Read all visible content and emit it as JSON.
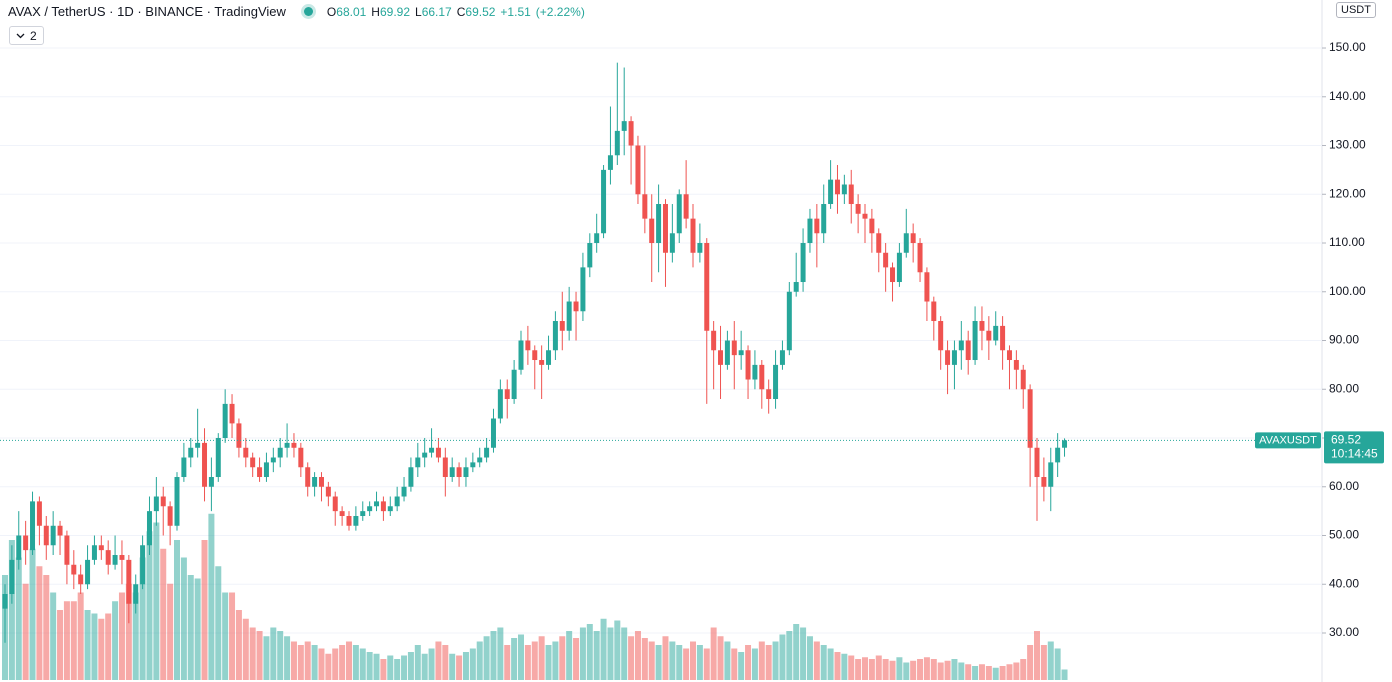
{
  "chart_data": {
    "type": "candlestick",
    "title": "AVAX / TetherUS · 1D · BINANCE · TradingView",
    "ohlc_labels": [
      "O",
      "H",
      "L",
      "C"
    ],
    "change": "+1.51",
    "change_pct": "(+2.22%)",
    "indicator_count": "2",
    "currency": "USDT",
    "symbol": "AVAXUSDT",
    "countdown": "10:14:45",
    "up_color": "#26a69a",
    "down_color": "#ef5350",
    "grid": true,
    "ylim": [
      19.95,
      159.85
    ],
    "volume_lim": [
      0,
      100
    ],
    "yticks": [
      {
        "value": 30,
        "label": "30.00"
      },
      {
        "value": 40,
        "label": "40.00"
      },
      {
        "value": 50,
        "label": "50.00"
      },
      {
        "value": 60,
        "label": "60.00"
      },
      {
        "value": 70,
        "label": "70.00"
      },
      {
        "value": 80,
        "label": "80.00"
      },
      {
        "value": 90,
        "label": "90.00"
      },
      {
        "value": 100,
        "label": "100.00"
      },
      {
        "value": 110,
        "label": "110.00"
      },
      {
        "value": 120,
        "label": "120.00"
      },
      {
        "value": 130,
        "label": "130.00"
      },
      {
        "value": 140,
        "label": "140.00"
      },
      {
        "value": 150,
        "label": "150.00"
      }
    ],
    "candles": [
      [
        35,
        40,
        28,
        38,
        60
      ],
      [
        38,
        48,
        36,
        45,
        80
      ],
      [
        45,
        55,
        43,
        50,
        70
      ],
      [
        50,
        53,
        44,
        47,
        55
      ],
      [
        47,
        59,
        46,
        57,
        75
      ],
      [
        57,
        58,
        48,
        52,
        65
      ],
      [
        52,
        54,
        45,
        48,
        60
      ],
      [
        48,
        55,
        46,
        52,
        50
      ],
      [
        52,
        53,
        46,
        50,
        40
      ],
      [
        50,
        51,
        40,
        44,
        45
      ],
      [
        44,
        47,
        39,
        42,
        45
      ],
      [
        42,
        44,
        38,
        40,
        50
      ],
      [
        40,
        48,
        39,
        45,
        40
      ],
      [
        45,
        50,
        44,
        48,
        38
      ],
      [
        48,
        50,
        45,
        47,
        35
      ],
      [
        47,
        49,
        42,
        44,
        38
      ],
      [
        44,
        50,
        43,
        46,
        45
      ],
      [
        46,
        49,
        40,
        45,
        50
      ],
      [
        45,
        46,
        32,
        36,
        55
      ],
      [
        36,
        42,
        34,
        40,
        50
      ],
      [
        40,
        50,
        39,
        48,
        70
      ],
      [
        48,
        58,
        46,
        55,
        85
      ],
      [
        55,
        62,
        52,
        58,
        90
      ],
      [
        58,
        60,
        50,
        56,
        75
      ],
      [
        56,
        57,
        48,
        52,
        55
      ],
      [
        52,
        63,
        51,
        62,
        80
      ],
      [
        62,
        69,
        61,
        66,
        70
      ],
      [
        66,
        70,
        64,
        68,
        60
      ],
      [
        68,
        76,
        66,
        69,
        58
      ],
      [
        69,
        72,
        57,
        60,
        80
      ],
      [
        60,
        66,
        55,
        62,
        95
      ],
      [
        62,
        71,
        61,
        70,
        65
      ],
      [
        70,
        80,
        69,
        77,
        50
      ],
      [
        77,
        79,
        70,
        73,
        50
      ],
      [
        73,
        74,
        66,
        68,
        40
      ],
      [
        68,
        70,
        64,
        66,
        35
      ],
      [
        66,
        67,
        62,
        64,
        30
      ],
      [
        64,
        66,
        61,
        62,
        28
      ],
      [
        62,
        67,
        61,
        65,
        25
      ],
      [
        65,
        68,
        63,
        66,
        30
      ],
      [
        66,
        70,
        64,
        68,
        28
      ],
      [
        68,
        73,
        66,
        69,
        25
      ],
      [
        69,
        71,
        66,
        68,
        22
      ],
      [
        68,
        69,
        62,
        64,
        20
      ],
      [
        64,
        65,
        58,
        60,
        22
      ],
      [
        60,
        63,
        58,
        62,
        20
      ],
      [
        62,
        63,
        57,
        60,
        18
      ],
      [
        60,
        61,
        56,
        58,
        15
      ],
      [
        58,
        59,
        52,
        55,
        18
      ],
      [
        55,
        56,
        52,
        54,
        20
      ],
      [
        54,
        55,
        51,
        52,
        22
      ],
      [
        52,
        56,
        51,
        54,
        20
      ],
      [
        54,
        57,
        53,
        55,
        18
      ],
      [
        55,
        57,
        54,
        56,
        16
      ],
      [
        56,
        59,
        55,
        57,
        15
      ],
      [
        57,
        58,
        53,
        55,
        12
      ],
      [
        55,
        58,
        54,
        56,
        14
      ],
      [
        56,
        60,
        55,
        58,
        12
      ],
      [
        58,
        62,
        57,
        60,
        14
      ],
      [
        60,
        66,
        59,
        64,
        16
      ],
      [
        64,
        69,
        62,
        66,
        20
      ],
      [
        66,
        70,
        64,
        67,
        15
      ],
      [
        67,
        72,
        66,
        68,
        18
      ],
      [
        68,
        70,
        65,
        66,
        22
      ],
      [
        66,
        68,
        58,
        62,
        20
      ],
      [
        62,
        66,
        61,
        64,
        15
      ],
      [
        64,
        65,
        60,
        62,
        14
      ],
      [
        62,
        66,
        60,
        64,
        16
      ],
      [
        64,
        67,
        63,
        65,
        18
      ],
      [
        65,
        68,
        64,
        66,
        22
      ],
      [
        66,
        70,
        65,
        68,
        25
      ],
      [
        68,
        76,
        67,
        74,
        28
      ],
      [
        74,
        82,
        73,
        80,
        30
      ],
      [
        80,
        82,
        74,
        78,
        20
      ],
      [
        78,
        86,
        77,
        84,
        24
      ],
      [
        84,
        92,
        83,
        90,
        26
      ],
      [
        90,
        93,
        85,
        88,
        20
      ],
      [
        88,
        89,
        80,
        86,
        22
      ],
      [
        86,
        89,
        78,
        85,
        25
      ],
      [
        85,
        91,
        84,
        88,
        20
      ],
      [
        88,
        96,
        86,
        94,
        22
      ],
      [
        94,
        100,
        88,
        92,
        25
      ],
      [
        92,
        101,
        90,
        98,
        28
      ],
      [
        98,
        100,
        90,
        96,
        24
      ],
      [
        96,
        108,
        94,
        105,
        30
      ],
      [
        105,
        112,
        103,
        110,
        32
      ],
      [
        110,
        116,
        108,
        112,
        28
      ],
      [
        112,
        126,
        111,
        125,
        35
      ],
      [
        125,
        138,
        122,
        128,
        30
      ],
      [
        128,
        147,
        126,
        133,
        34
      ],
      [
        133,
        146,
        128,
        135,
        30
      ],
      [
        135,
        136,
        122,
        130,
        25
      ],
      [
        130,
        132,
        118,
        120,
        28
      ],
      [
        120,
        130,
        112,
        115,
        24
      ],
      [
        115,
        120,
        102,
        110,
        22
      ],
      [
        110,
        122,
        104,
        118,
        20
      ],
      [
        118,
        119,
        101,
        108,
        25
      ],
      [
        108,
        118,
        106,
        112,
        22
      ],
      [
        112,
        121,
        110,
        120,
        20
      ],
      [
        120,
        127,
        113,
        115,
        18
      ],
      [
        115,
        118,
        105,
        108,
        22
      ],
      [
        108,
        114,
        106,
        110,
        20
      ],
      [
        110,
        111,
        77,
        92,
        18
      ],
      [
        92,
        94,
        80,
        88,
        30
      ],
      [
        88,
        93,
        78,
        85,
        25
      ],
      [
        85,
        92,
        84,
        90,
        22
      ],
      [
        90,
        94,
        80,
        87,
        18
      ],
      [
        87,
        92,
        84,
        88,
        16
      ],
      [
        88,
        89,
        78,
        82,
        20
      ],
      [
        82,
        88,
        80,
        85,
        18
      ],
      [
        85,
        86,
        76,
        80,
        22
      ],
      [
        80,
        82,
        75,
        78,
        20
      ],
      [
        78,
        88,
        76,
        85,
        22
      ],
      [
        85,
        90,
        84,
        88,
        26
      ],
      [
        88,
        102,
        87,
        100,
        28
      ],
      [
        100,
        108,
        99,
        102,
        32
      ],
      [
        102,
        113,
        100,
        110,
        30
      ],
      [
        110,
        117,
        108,
        115,
        25
      ],
      [
        115,
        118,
        105,
        112,
        22
      ],
      [
        112,
        122,
        110,
        118,
        20
      ],
      [
        118,
        127,
        117,
        123,
        18
      ],
      [
        123,
        126,
        116,
        120,
        16
      ],
      [
        120,
        124,
        118,
        122,
        15
      ],
      [
        122,
        125,
        114,
        118,
        14
      ],
      [
        118,
        120,
        112,
        116,
        12
      ],
      [
        116,
        118,
        110,
        115,
        13
      ],
      [
        115,
        117,
        108,
        112,
        12
      ],
      [
        112,
        113,
        104,
        108,
        14
      ],
      [
        108,
        110,
        100,
        105,
        12
      ],
      [
        105,
        106,
        98,
        102,
        11
      ],
      [
        102,
        110,
        101,
        108,
        13
      ],
      [
        108,
        117,
        107,
        112,
        10
      ],
      [
        112,
        114,
        106,
        110,
        11
      ],
      [
        110,
        111,
        102,
        104,
        12
      ],
      [
        104,
        105,
        94,
        98,
        13
      ],
      [
        98,
        99,
        90,
        94,
        12
      ],
      [
        94,
        95,
        84,
        88,
        10
      ],
      [
        88,
        90,
        79,
        85,
        11
      ],
      [
        85,
        90,
        80,
        88,
        12
      ],
      [
        88,
        94,
        84,
        90,
        10
      ],
      [
        90,
        92,
        83,
        86,
        9
      ],
      [
        86,
        97,
        85,
        94,
        8
      ],
      [
        94,
        97,
        88,
        92,
        9
      ],
      [
        92,
        95,
        86,
        90,
        8
      ],
      [
        90,
        96,
        89,
        93,
        7
      ],
      [
        93,
        95,
        84,
        88,
        8
      ],
      [
        88,
        89,
        80,
        86,
        9
      ],
      [
        86,
        88,
        80,
        84,
        10
      ],
      [
        84,
        85,
        76,
        80,
        12
      ],
      [
        80,
        81,
        60,
        68,
        20
      ],
      [
        68,
        70,
        53,
        62,
        28
      ],
      [
        62,
        66,
        57,
        60,
        20
      ],
      [
        60,
        68,
        55,
        65,
        22
      ],
      [
        65,
        71,
        62,
        68.01,
        18
      ],
      [
        68.01,
        69.92,
        66.17,
        69.52,
        6
      ]
    ]
  }
}
